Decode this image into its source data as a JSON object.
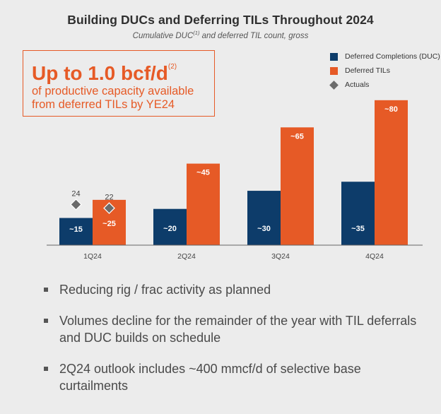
{
  "header": {
    "title": "Building DUCs and Deferring TILs Throughout 2024",
    "subtitle_pre": "Cumulative DUC",
    "subtitle_sup": "(1)",
    "subtitle_post": " and deferred TIL count, gross"
  },
  "callout": {
    "headline": "Up to 1.0 bcf/d",
    "headline_sup": "(2)",
    "line1": "of productive capacity available",
    "line2": "from deferred TILs by YE24",
    "color": "#e65a26"
  },
  "colors": {
    "duc": "#0d3c6a",
    "til": "#e65a26",
    "actual": "#6b6b6b"
  },
  "chart_data": {
    "type": "bar",
    "categories": [
      "1Q24",
      "2Q24",
      "3Q24",
      "4Q24"
    ],
    "ylim": [
      0,
      85
    ],
    "legend_position": "top-right",
    "series": [
      {
        "name": "Deferred Completions (DUC)",
        "values": [
          15,
          20,
          30,
          35
        ],
        "labels": [
          "~15",
          "~20",
          "~30",
          "~35"
        ]
      },
      {
        "name": "Deferred TILs",
        "values": [
          25,
          45,
          65,
          80
        ],
        "labels": [
          "~25",
          "~45",
          "~65",
          "~80"
        ]
      }
    ],
    "actuals": {
      "name": "Actuals",
      "points": [
        {
          "category": "1Q24",
          "series": "Deferred Completions (DUC)",
          "value": 24,
          "label": "24"
        },
        {
          "category": "1Q24",
          "series": "Deferred TILs",
          "value": 22,
          "label": "22"
        }
      ]
    },
    "grid": false
  },
  "bullets": [
    "Reducing rig / frac activity as planned",
    "Volumes decline for the remainder of the year with TIL deferrals and DUC builds on schedule",
    "2Q24 outlook includes ~400 mmcf/d of selective base curtailments"
  ]
}
